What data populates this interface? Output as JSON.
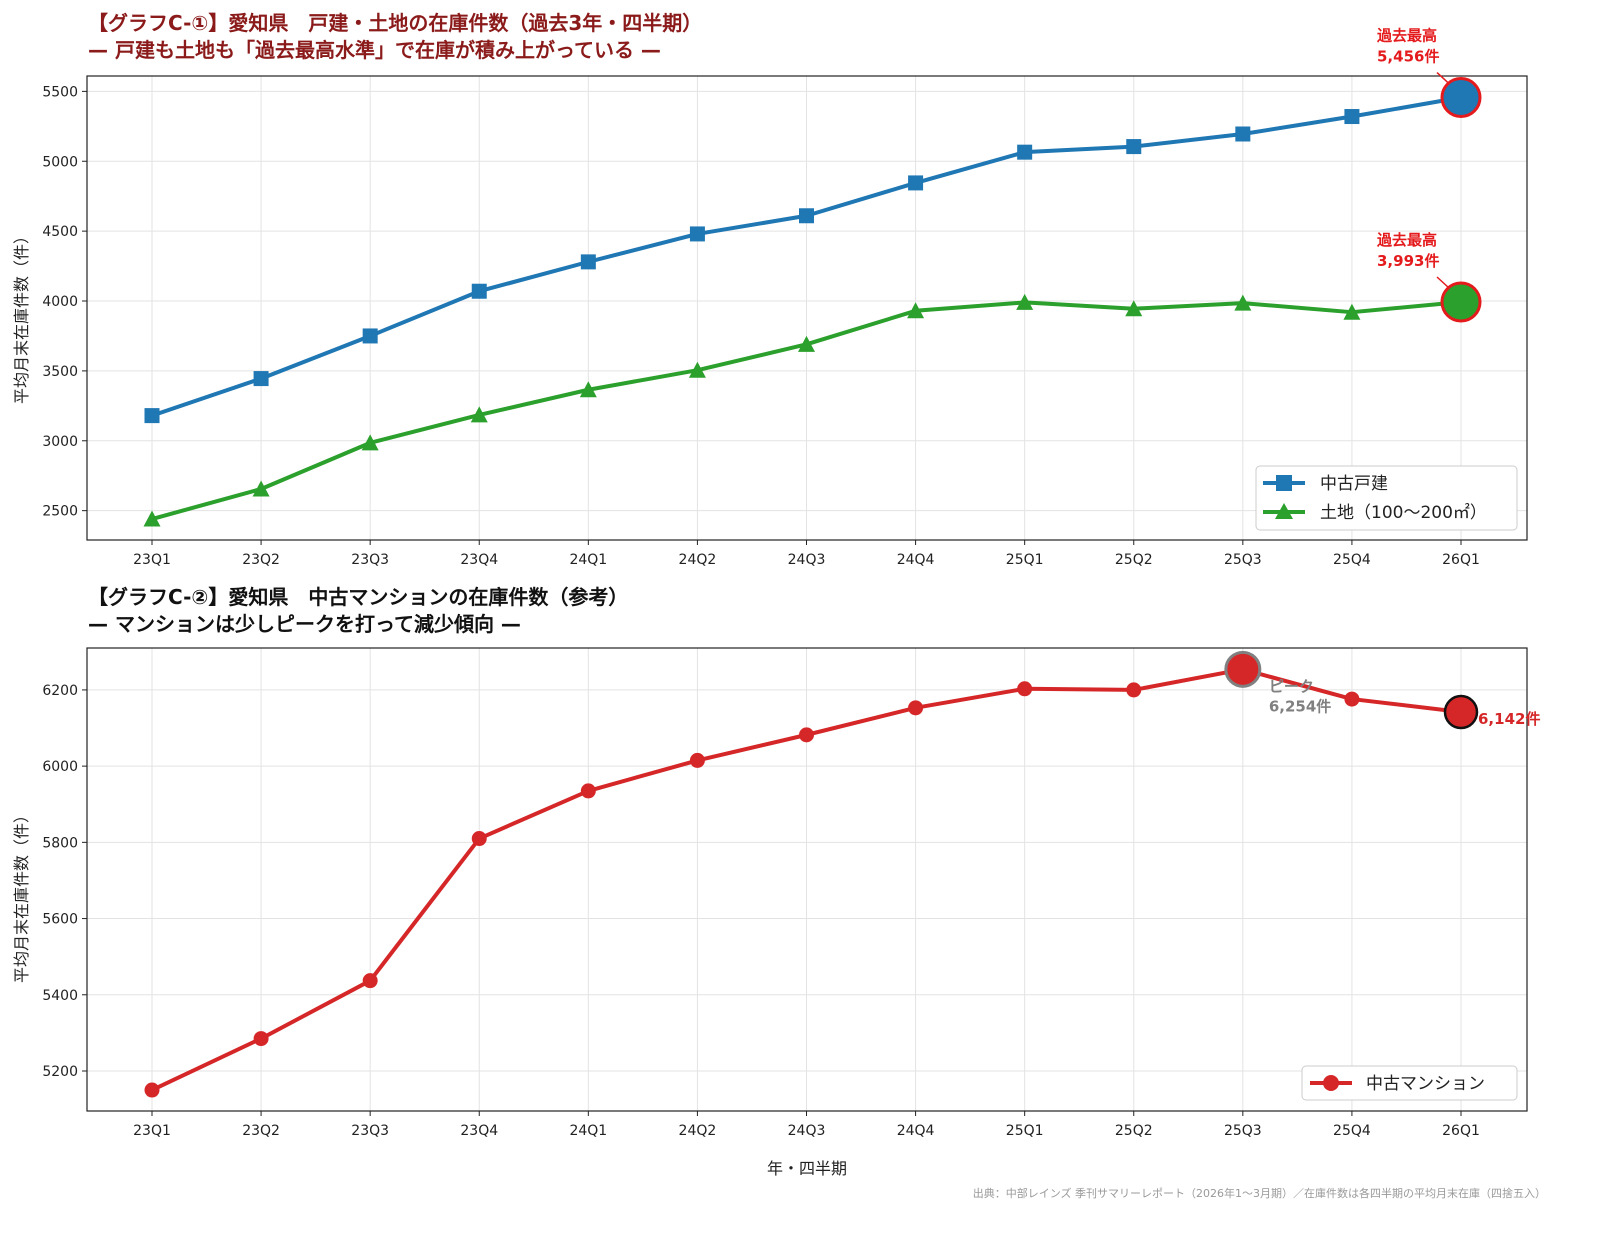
{
  "source_note": "出典：中部レインズ 季刊サマリーレポート（2026年1〜3月期）／在庫件数は各四半期の平均月末在庫（四捨五入）",
  "chart_data": [
    {
      "type": "line",
      "title": "【グラフC-①】愛知県　戸建・土地の在庫件数（過去3年・四半期）",
      "subtitle": "— 戸建も土地も「過去最高水準」で在庫が積み上がっている —",
      "xlabel": "",
      "ylabel": "平均月末在庫件数（件）",
      "ylim": [
        2290,
        5610
      ],
      "yticks": [
        2500,
        3000,
        3500,
        4000,
        4500,
        5000,
        5500
      ],
      "grid": true,
      "legend_position": "bottom-right",
      "categories": [
        "23Q1",
        "23Q2",
        "23Q3",
        "23Q4",
        "24Q1",
        "24Q2",
        "24Q3",
        "24Q4",
        "25Q1",
        "25Q2",
        "25Q3",
        "25Q4",
        "26Q1"
      ],
      "series": [
        {
          "name": "中古戸建",
          "color": "#1f77b4",
          "marker": "square",
          "values": [
            3180,
            3445,
            3750,
            4070,
            4280,
            4480,
            4610,
            4845,
            5065,
            5105,
            5195,
            5320,
            5456
          ]
        },
        {
          "name": "土地（100〜200㎡）",
          "color": "#2ca02c",
          "marker": "triangle",
          "values": [
            2440,
            2655,
            2985,
            3185,
            3365,
            3505,
            3690,
            3930,
            3990,
            3945,
            3985,
            3920,
            3993
          ]
        }
      ],
      "annotations": [
        {
          "label": "過去最高",
          "value": "5,456件",
          "category": "26Q1",
          "y": 5456,
          "color": "#e41a1c"
        },
        {
          "label": "過去最高",
          "value": "3,993件",
          "category": "26Q1",
          "y": 3993,
          "color": "#e41a1c"
        }
      ]
    },
    {
      "type": "line",
      "title": "【グラフC-②】愛知県　中古マンションの在庫件数（参考）",
      "subtitle": "— マンションは少しピークを打って減少傾向 —",
      "xlabel": "年・四半期",
      "ylabel": "平均月末在庫件数（件）",
      "ylim": [
        5095,
        6310
      ],
      "yticks": [
        5200,
        5400,
        5600,
        5800,
        6000,
        6200
      ],
      "grid": true,
      "legend_position": "bottom-right",
      "categories": [
        "23Q1",
        "23Q2",
        "23Q3",
        "23Q4",
        "24Q1",
        "24Q2",
        "24Q3",
        "24Q4",
        "25Q1",
        "25Q2",
        "25Q3",
        "25Q4",
        "26Q1"
      ],
      "series": [
        {
          "name": "中古マンション",
          "color": "#d62728",
          "marker": "circle",
          "values": [
            5150,
            5285,
            5437,
            5810,
            5935,
            6015,
            6082,
            6153,
            6203,
            6200,
            6254,
            6176,
            6142
          ]
        }
      ],
      "annotations": [
        {
          "label": "ピーク",
          "value": "6,254件",
          "category": "25Q3",
          "y": 6254,
          "color": "#808080"
        },
        {
          "label": "",
          "value": "6,142件",
          "category": "26Q1",
          "y": 6142,
          "color": "#d62728"
        }
      ]
    }
  ]
}
